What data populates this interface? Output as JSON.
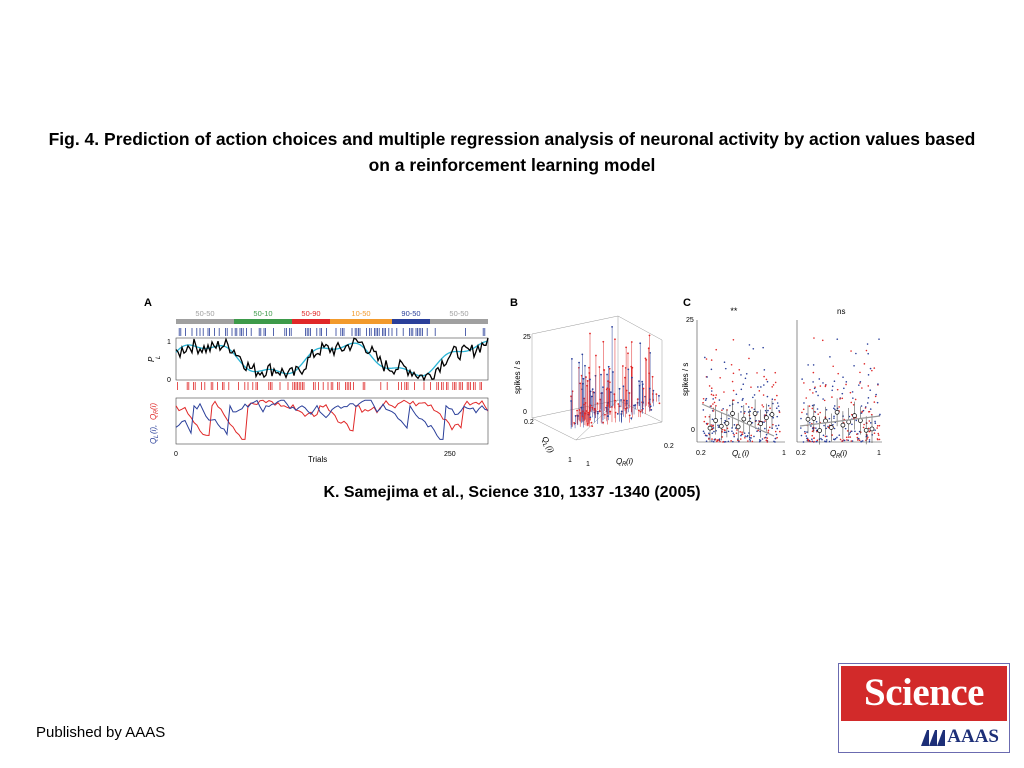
{
  "title": "Fig. 4. Prediction of action choices and multiple regression analysis of neuronal activity by action values based on a reinforcement learning model",
  "citation": "K.  Samejima et al.,  Science  310, 1337 -1340 (2005)",
  "published_by": "Published by AAAS",
  "logo": {
    "top": "Science",
    "bottom": "AAAS"
  },
  "figure": {
    "panel_a": {
      "letter": "A",
      "conditions": [
        {
          "label": "50-50",
          "color": "#a0a0a0"
        },
        {
          "label": "50-10",
          "color": "#3d9a4a"
        },
        {
          "label": "50-90",
          "color": "#e02828"
        },
        {
          "label": "10-50",
          "color": "#f29a2c"
        },
        {
          "label": "90-50",
          "color": "#2a3f9a"
        },
        {
          "label": "50-50",
          "color": "#a0a0a0"
        }
      ],
      "pl_label": "P",
      "pl_sub": "L",
      "q_label_l": "Q",
      "q_label_l_sub": "L",
      "q_label_l_arg": "(i),",
      "q_label_r": "Q",
      "q_label_r_sub": "R",
      "q_label_r_arg": "(i)",
      "y_tick_top": "1",
      "y_tick_bottom": "0",
      "x_label": "Trials",
      "x_tick_start": "0",
      "x_tick_end": "250"
    },
    "panel_b": {
      "letter": "B",
      "z_label": "spikes / s",
      "z_tick_top": "25",
      "z_tick_bottom": "0",
      "ql_label": "Q",
      "ql_sub": "L",
      "ql_arg": "(i)",
      "qr_label": "Q",
      "qr_sub": "R",
      "qr_arg": "(i)",
      "tick_02_left": "0.2",
      "tick_1_left": "1",
      "tick_1_right": "1",
      "tick_02_right": "0.2"
    },
    "panel_c": {
      "letter": "C",
      "y_label": "spikes / s",
      "y_tick_top": "25",
      "y_tick_bottom": "0",
      "left_sig": "**",
      "right_sig": "ns",
      "left_x": "Q",
      "left_x_sub": "L",
      "left_x_arg": "(i)",
      "right_x": "Q",
      "right_x_sub": "R",
      "right_x_arg": "(i)",
      "x_tick_start_left": "0.2",
      "x_tick_end_left": "1",
      "x_tick_start_right": "0.2",
      "x_tick_end_right": "1"
    }
  },
  "colors": {
    "red": "#e02828",
    "blue": "#2a3f9a",
    "cyan": "#2bb5d6",
    "logo_red": "#d22a2a",
    "logo_blue": "#1d2f78"
  }
}
